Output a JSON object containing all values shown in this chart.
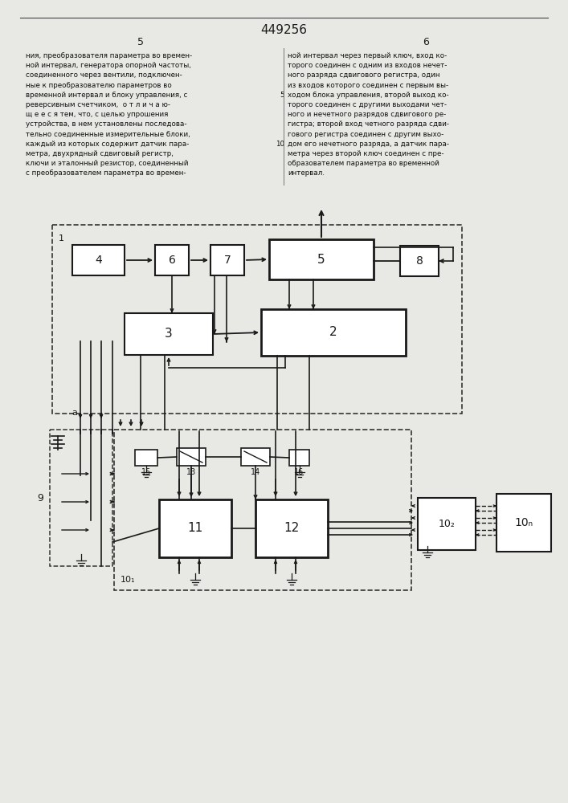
{
  "patent_number": "449256",
  "bg_color": "#e8e8e4",
  "line_color": "#1a1a1a",
  "box_fill": "#ffffff",
  "text_color": "#1a1a1a",
  "left_text": [
    "ния, преобразователя параметра во времен-",
    "ной интервал, генератора опорной частоты,",
    "соединенного через вентили, подключен-",
    "ные к преобразователю параметров во",
    "временной интервал и блоку управления, с",
    "реверсивным счетчиком,  о т л и ч а ю-",
    "щ е е с я тем, что, с целью упрошения",
    "устройства, в нем установлены последова-",
    "тельно соединенные измерительные блоки,",
    "каждый из которых содержит датчик пара-",
    "метра, двухрядный сдвиговый регистр,",
    "ключи и эталонный резистор, соединенный",
    "с преобразователем параметра во времен-"
  ],
  "right_text": [
    "ной интервал через первый ключ, вход ко-",
    "торого соединен с одним из входов нечет-",
    "ного разряда сдвигового регистра, один",
    "из входов которого соединен с первым вы-",
    "ходом блока управления, второй выход ко-",
    "торого соединен с другими выходами чет-",
    "ного и нечетного разрядов сдвигового ре-",
    "гистра; второй вход четного разряда сдви-",
    "гового регистра соединен с другим выхо-",
    "дом его нечетного разряда, а датчик пара-",
    "метра через второй ключ соединен с пре-",
    "образователем параметра во временной",
    "интервал."
  ]
}
